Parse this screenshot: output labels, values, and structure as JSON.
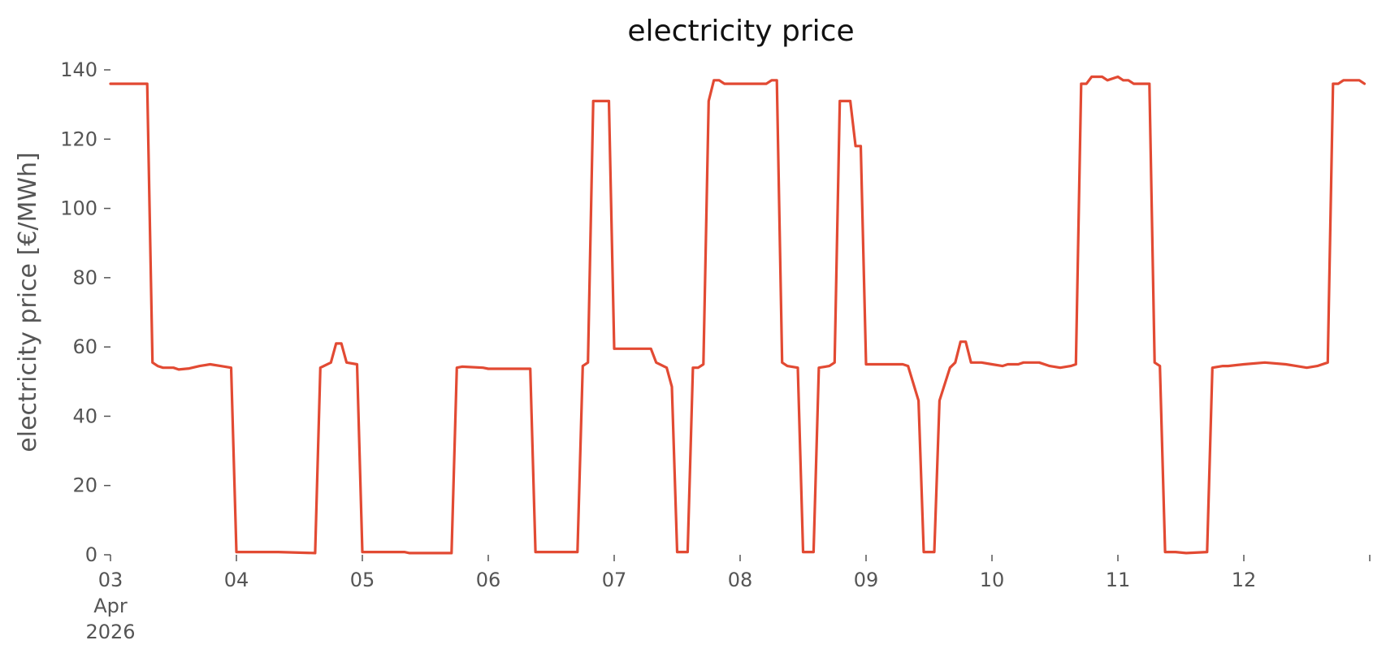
{
  "chart_data": {
    "type": "line",
    "title": "electricity price",
    "xlabel": "",
    "ylabel": "electricity price [€/MWh]",
    "ylim": [
      0,
      140
    ],
    "xlim": [
      "2026-04-03T00:00",
      "2026-04-13T00:00"
    ],
    "grid": false,
    "color": "#E24A33",
    "yticks": [
      0,
      20,
      40,
      60,
      80,
      100,
      120,
      140
    ],
    "yticklabels": [
      "0",
      "20",
      "40",
      "60",
      "80",
      "100",
      "120",
      "140"
    ],
    "xticks": [
      {
        "x": "2026-04-03T00:00",
        "lines": [
          "03",
          "Apr",
          "2026"
        ]
      },
      {
        "x": "2026-04-04T00:00",
        "lines": [
          "04"
        ]
      },
      {
        "x": "2026-04-05T00:00",
        "lines": [
          "05"
        ]
      },
      {
        "x": "2026-04-06T00:00",
        "lines": [
          "06"
        ]
      },
      {
        "x": "2026-04-07T00:00",
        "lines": [
          "07"
        ]
      },
      {
        "x": "2026-04-08T00:00",
        "lines": [
          "08"
        ]
      },
      {
        "x": "2026-04-09T00:00",
        "lines": [
          "09"
        ]
      },
      {
        "x": "2026-04-10T00:00",
        "lines": [
          "10"
        ]
      },
      {
        "x": "2026-04-11T00:00",
        "lines": [
          "11"
        ]
      },
      {
        "x": "2026-04-12T00:00",
        "lines": [
          "12"
        ]
      },
      {
        "x": "2026-04-13T00:00",
        "lines": [
          ""
        ]
      }
    ],
    "series": [
      {
        "values": [
          [
            "2026-04-03T00:00",
            136
          ],
          [
            "2026-04-03T07:00",
            136
          ],
          [
            "2026-04-03T08:00",
            55.5
          ],
          [
            "2026-04-03T09:00",
            54.5
          ],
          [
            "2026-04-03T10:00",
            54
          ],
          [
            "2026-04-03T12:00",
            54
          ],
          [
            "2026-04-03T13:00",
            53.5
          ],
          [
            "2026-04-03T15:00",
            53.8
          ],
          [
            "2026-04-03T17:00",
            54.5
          ],
          [
            "2026-04-03T19:00",
            55
          ],
          [
            "2026-04-03T21:00",
            54.5
          ],
          [
            "2026-04-03T23:00",
            54
          ],
          [
            "2026-04-04T00:00",
            0.8
          ],
          [
            "2026-04-04T08:00",
            0.8
          ],
          [
            "2026-04-04T15:00",
            0.5
          ],
          [
            "2026-04-04T16:00",
            54
          ],
          [
            "2026-04-04T18:00",
            55.5
          ],
          [
            "2026-04-04T19:00",
            61
          ],
          [
            "2026-04-04T20:00",
            61
          ],
          [
            "2026-04-04T21:00",
            55.5
          ],
          [
            "2026-04-04T23:00",
            55
          ],
          [
            "2026-04-05T00:00",
            0.8
          ],
          [
            "2026-04-05T08:00",
            0.8
          ],
          [
            "2026-04-05T09:00",
            0.5
          ],
          [
            "2026-04-05T17:00",
            0.5
          ],
          [
            "2026-04-05T18:00",
            54
          ],
          [
            "2026-04-05T19:00",
            54.3
          ],
          [
            "2026-04-05T23:00",
            54
          ],
          [
            "2026-04-06T00:00",
            53.7
          ],
          [
            "2026-04-06T07:00",
            53.7
          ],
          [
            "2026-04-06T08:00",
            53.7
          ],
          [
            "2026-04-06T09:00",
            0.8
          ],
          [
            "2026-04-06T17:00",
            0.8
          ],
          [
            "2026-04-06T18:00",
            54.5
          ],
          [
            "2026-04-06T19:00",
            55.5
          ],
          [
            "2026-04-06T20:00",
            131
          ],
          [
            "2026-04-06T23:00",
            131
          ],
          [
            "2026-04-07T00:00",
            59.5
          ],
          [
            "2026-04-07T07:00",
            59.5
          ],
          [
            "2026-04-07T08:00",
            55.5
          ],
          [
            "2026-04-07T10:00",
            54
          ],
          [
            "2026-04-07T11:00",
            48.5
          ],
          [
            "2026-04-07T12:00",
            0.8
          ],
          [
            "2026-04-07T14:00",
            0.8
          ],
          [
            "2026-04-07T15:00",
            54
          ],
          [
            "2026-04-07T16:00",
            54
          ],
          [
            "2026-04-07T17:00",
            55
          ],
          [
            "2026-04-07T18:00",
            131
          ],
          [
            "2026-04-07T19:00",
            137
          ],
          [
            "2026-04-07T20:00",
            137
          ],
          [
            "2026-04-07T21:00",
            136
          ],
          [
            "2026-04-08T05:00",
            136
          ],
          [
            "2026-04-08T06:00",
            137
          ],
          [
            "2026-04-08T07:00",
            137
          ],
          [
            "2026-04-08T08:00",
            55.5
          ],
          [
            "2026-04-08T09:00",
            54.5
          ],
          [
            "2026-04-08T11:00",
            54
          ],
          [
            "2026-04-08T12:00",
            0.8
          ],
          [
            "2026-04-08T14:00",
            0.8
          ],
          [
            "2026-04-08T15:00",
            54
          ],
          [
            "2026-04-08T17:00",
            54.5
          ],
          [
            "2026-04-08T18:00",
            55.5
          ],
          [
            "2026-04-08T19:00",
            131
          ],
          [
            "2026-04-08T21:00",
            131
          ],
          [
            "2026-04-08T22:00",
            118
          ],
          [
            "2026-04-08T23:00",
            118
          ],
          [
            "2026-04-09T00:00",
            55
          ],
          [
            "2026-04-09T07:00",
            55
          ],
          [
            "2026-04-09T08:00",
            54.5
          ],
          [
            "2026-04-09T10:00",
            44.5
          ],
          [
            "2026-04-09T11:00",
            0.8
          ],
          [
            "2026-04-09T13:00",
            0.8
          ],
          [
            "2026-04-09T14:00",
            44.5
          ],
          [
            "2026-04-09T16:00",
            54
          ],
          [
            "2026-04-09T17:00",
            55.5
          ],
          [
            "2026-04-09T18:00",
            61.5
          ],
          [
            "2026-04-09T19:00",
            61.5
          ],
          [
            "2026-04-09T20:00",
            55.5
          ],
          [
            "2026-04-09T22:00",
            55.5
          ],
          [
            "2026-04-10T00:00",
            55
          ],
          [
            "2026-04-10T02:00",
            54.5
          ],
          [
            "2026-04-10T03:00",
            55
          ],
          [
            "2026-04-10T05:00",
            55
          ],
          [
            "2026-04-10T06:00",
            55.5
          ],
          [
            "2026-04-10T09:00",
            55.5
          ],
          [
            "2026-04-10T11:00",
            54.5
          ],
          [
            "2026-04-10T13:00",
            54
          ],
          [
            "2026-04-10T15:00",
            54.5
          ],
          [
            "2026-04-10T16:00",
            55
          ],
          [
            "2026-04-10T17:00",
            136
          ],
          [
            "2026-04-10T18:00",
            136
          ],
          [
            "2026-04-10T19:00",
            138
          ],
          [
            "2026-04-10T21:00",
            138
          ],
          [
            "2026-04-10T22:00",
            137
          ],
          [
            "2026-04-11T00:00",
            138
          ],
          [
            "2026-04-11T01:00",
            137
          ],
          [
            "2026-04-11T02:00",
            137
          ],
          [
            "2026-04-11T03:00",
            136
          ],
          [
            "2026-04-11T06:00",
            136
          ],
          [
            "2026-04-11T07:00",
            55.5
          ],
          [
            "2026-04-11T08:00",
            54.5
          ],
          [
            "2026-04-11T09:00",
            0.8
          ],
          [
            "2026-04-11T11:00",
            0.8
          ],
          [
            "2026-04-11T13:00",
            0.5
          ],
          [
            "2026-04-11T17:00",
            0.8
          ],
          [
            "2026-04-11T18:00",
            54
          ],
          [
            "2026-04-11T20:00",
            54.5
          ],
          [
            "2026-04-11T21:00",
            54.5
          ],
          [
            "2026-04-12T00:00",
            55
          ],
          [
            "2026-04-12T04:00",
            55.5
          ],
          [
            "2026-04-12T08:00",
            55
          ],
          [
            "2026-04-12T10:00",
            54.5
          ],
          [
            "2026-04-12T12:00",
            54
          ],
          [
            "2026-04-12T14:00",
            54.5
          ],
          [
            "2026-04-12T16:00",
            55.5
          ],
          [
            "2026-04-12T17:00",
            136
          ],
          [
            "2026-04-12T18:00",
            136
          ],
          [
            "2026-04-12T19:00",
            137
          ],
          [
            "2026-04-12T22:00",
            137
          ],
          [
            "2026-04-12T23:00",
            136
          ]
        ]
      }
    ]
  }
}
